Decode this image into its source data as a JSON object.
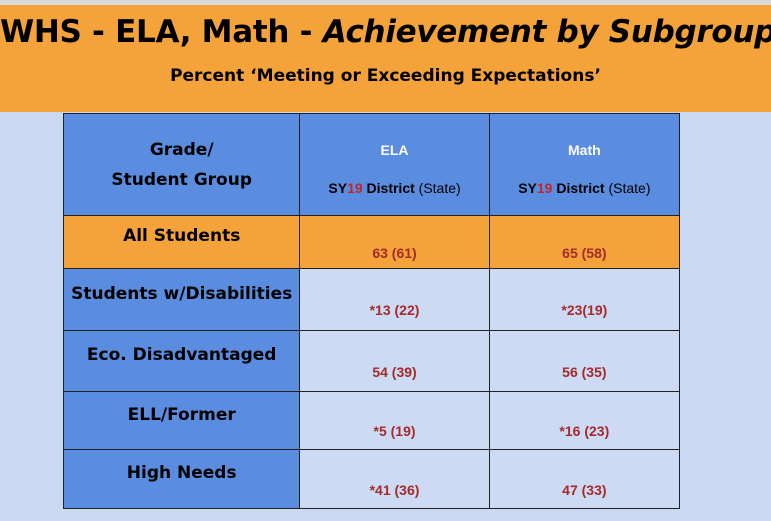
{
  "header": {
    "title_main": "WHS - ELA, Math - ",
    "title_italic": "Achievement by Subgroups",
    "subtitle": "Percent ‘Meeting or Exceeding Expectations’"
  },
  "table": {
    "corner_line1": "Grade/",
    "corner_line2": "Student Group",
    "columns": [
      {
        "title": "ELA",
        "sy": "SY",
        "year": "19",
        "district": "District",
        "state": "(State)"
      },
      {
        "title": "Math",
        "sy": "SY",
        "year": "19",
        "district": "District",
        "state": "(State)"
      }
    ],
    "rows": [
      {
        "label": "All Students",
        "ela": "63 (61)",
        "math": "65 (58)"
      },
      {
        "label": "Students w/Disabilities",
        "ela": "*13 (22)",
        "math": "*23(19)"
      },
      {
        "label": "Eco. Disadvantaged",
        "ela": "54 (39)",
        "math": "56 (35)"
      },
      {
        "label": "ELL/Former",
        "ela": "*5 (19)",
        "math": "*16 (23)"
      },
      {
        "label": "High Needs",
        "ela": "*41 (36)",
        "math": "47 (33)"
      }
    ]
  },
  "colors": {
    "banner": "#f4a33a",
    "header_blue": "#5a8de0",
    "cell_light": "#ccdaf3",
    "value_red": "#a52a2a",
    "year_red": "#c0262c"
  }
}
